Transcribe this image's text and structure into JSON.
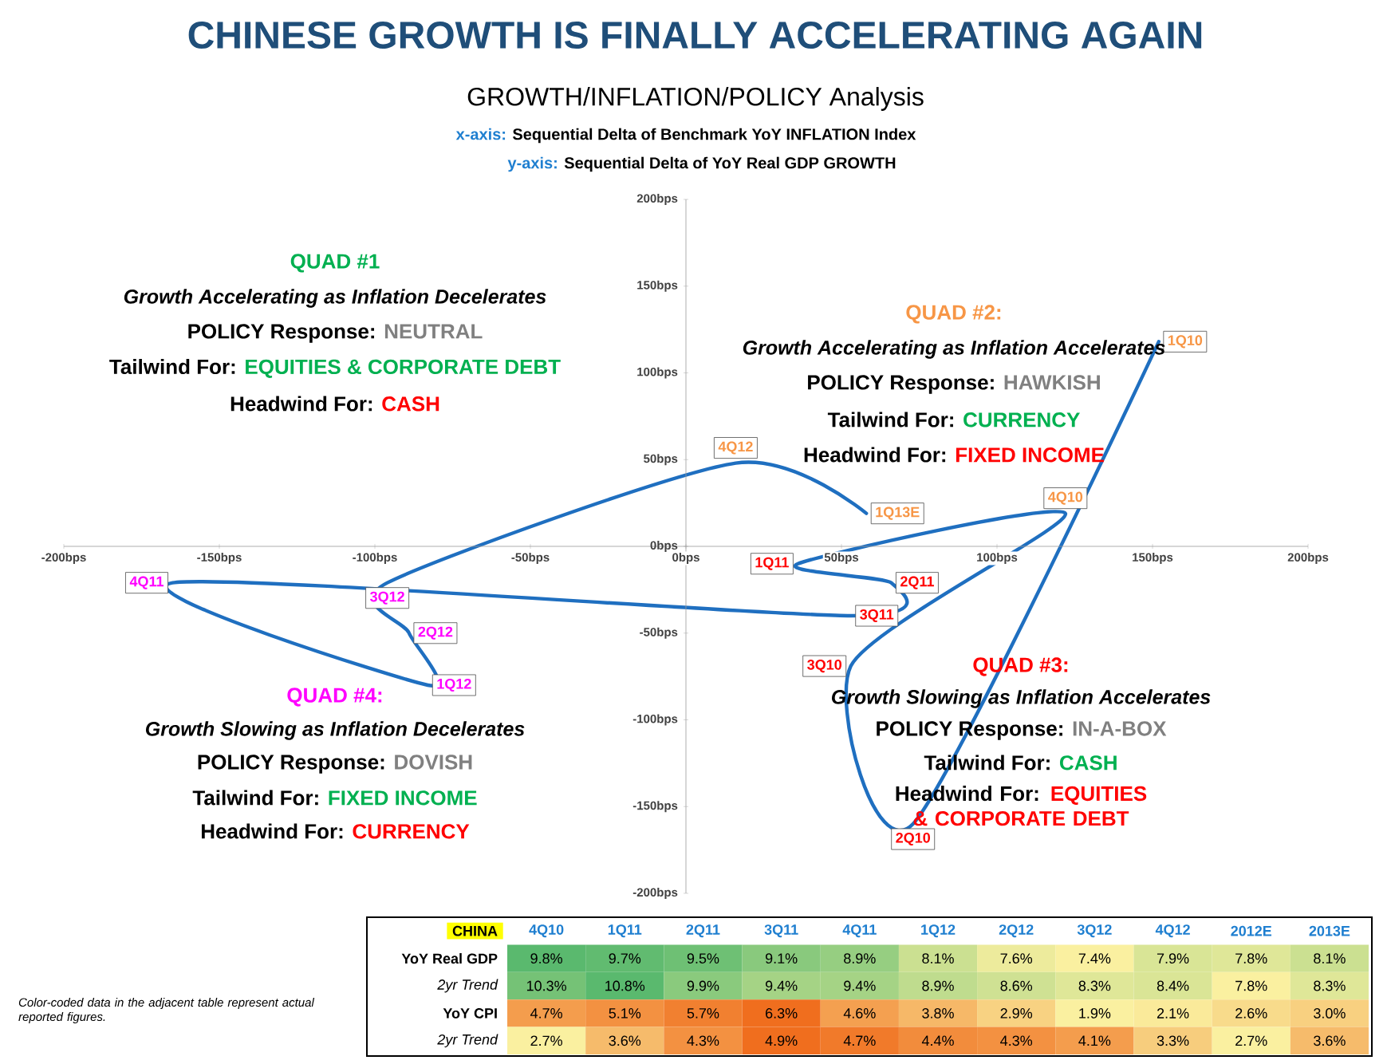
{
  "chart_data": [
    {
      "type": "line",
      "title": "CHINESE GROWTH IS FINALLY ACCELERATING AGAIN",
      "subtitle": "GROWTH/INFLATION/POLICY Analysis",
      "xlabel": "Sequential Delta of Benchmark YoY INFLATION Index",
      "ylabel": "Sequential Delta of YoY Real GDP GROWTH",
      "x": [
        152,
        73,
        53,
        122,
        36,
        66,
        53,
        -165,
        -83,
        -89,
        -96,
        16,
        58
      ],
      "values": [
        118,
        -160,
        -69,
        19,
        -10,
        -21,
        -40,
        -21,
        -80,
        -50,
        -21,
        48,
        19
      ],
      "color": "#1f6fc0",
      "xlim": [
        -200,
        200
      ],
      "ylim": [
        -200,
        200
      ],
      "xticks": [
        {
          "value": -200,
          "label": "-200bps"
        },
        {
          "value": -150,
          "label": "-150bps"
        },
        {
          "value": -100,
          "label": "-100bps"
        },
        {
          "value": -50,
          "label": "-50bps"
        },
        {
          "value": 0,
          "label": "0bps"
        },
        {
          "value": 50,
          "label": "50bps"
        },
        {
          "value": 100,
          "label": "100bps"
        },
        {
          "value": 150,
          "label": "150bps"
        },
        {
          "value": 200,
          "label": "200bps"
        }
      ],
      "yticks": [
        {
          "value": -200,
          "label": "-200bps"
        },
        {
          "value": -150,
          "label": "-150bps"
        },
        {
          "value": -100,
          "label": "-100bps"
        },
        {
          "value": -50,
          "label": "-50bps"
        },
        {
          "value": 0,
          "label": "0bps"
        },
        {
          "value": 50,
          "label": "50bps"
        },
        {
          "value": 100,
          "label": "100bps"
        },
        {
          "value": 150,
          "label": "150bps"
        },
        {
          "value": 200,
          "label": "200bps"
        }
      ],
      "annotations": [
        "x-axis:",
        "y-axis:",
        "QUAD #1",
        "Growth Accelerating as Inflation Decelerates",
        "POLICY Response:",
        "NEUTRAL",
        "Tailwind For:",
        "EQUITIES & CORPORATE DEBT",
        "Headwind For:",
        "CASH",
        "QUAD #2:",
        "Growth Accelerating as Inflation Accelerates",
        "POLICY Response:",
        "HAWKISH",
        "Tailwind For:",
        "CURRENCY",
        "Headwind For:",
        "FIXED INCOME",
        "QUAD #3:",
        "Growth Slowing as Inflation Accelerates",
        "POLICY Response:",
        "IN-A-BOX",
        "Tailwind For:",
        "CASH",
        "Headwind For:",
        "EQUITIES & CORPORATE DEBT",
        "QUAD #4:",
        "Growth Slowing as Inflation Decelerates",
        "POLICY Response:",
        "DOVISH",
        "Tailwind For:",
        "FIXED INCOME",
        "Headwind For:",
        "CURRENCY",
        "Color-coded data in the adjacent table represent actual reported figures.",
        {
          "text": "1Q10",
          "x": 152,
          "y": 118
        },
        {
          "text": "2Q10",
          "x": 73,
          "y": -160
        },
        {
          "text": "3Q10",
          "x": 53,
          "y": -69
        },
        {
          "text": "4Q10",
          "x": 122,
          "y": 19
        },
        {
          "text": "1Q11",
          "x": 36,
          "y": -10
        },
        {
          "text": "2Q11",
          "x": 66,
          "y": -21
        },
        {
          "text": "3Q11",
          "x": 53,
          "y": -40
        },
        {
          "text": "4Q11",
          "x": -165,
          "y": -21
        },
        {
          "text": "1Q12",
          "x": -83,
          "y": -80
        },
        {
          "text": "2Q12",
          "x": -89,
          "y": -50
        },
        {
          "text": "3Q12",
          "x": -96,
          "y": -21
        },
        {
          "text": "4Q12",
          "x": 16,
          "y": 48
        },
        {
          "text": "1Q13E",
          "x": 58,
          "y": 19
        }
      ]
    },
    {
      "type": "heatmap",
      "title": "CHINA",
      "categories": [
        "4Q10",
        "1Q11",
        "2Q11",
        "3Q11",
        "4Q11",
        "1Q12",
        "2Q12",
        "3Q12",
        "4Q12",
        "2012E",
        "2013E"
      ],
      "y_categories": [
        "YoY Real GDP",
        "2yr Trend",
        "YoY CPI",
        "2yr Trend"
      ],
      "cells": [
        [
          9.8,
          9.7,
          9.5,
          9.1,
          8.9,
          8.1,
          7.6,
          7.4,
          7.9,
          7.8,
          8.1
        ],
        [
          10.3,
          10.8,
          9.9,
          9.4,
          9.4,
          8.9,
          8.6,
          8.3,
          8.4,
          7.8,
          8.3
        ],
        [
          4.7,
          5.1,
          5.7,
          6.3,
          4.6,
          3.8,
          2.9,
          1.9,
          2.1,
          2.6,
          3.0
        ],
        [
          2.7,
          3.6,
          4.3,
          4.9,
          4.7,
          4.4,
          4.3,
          4.1,
          3.3,
          2.7,
          3.6
        ]
      ],
      "cell_labels": [
        [
          "9.8%",
          "9.7%",
          "9.5%",
          "9.1%",
          "8.9%",
          "8.1%",
          "7.6%",
          "7.4%",
          "7.9%",
          "7.8%",
          "8.1%"
        ],
        [
          "10.3%",
          "10.8%",
          "9.9%",
          "9.4%",
          "9.4%",
          "8.9%",
          "8.6%",
          "8.3%",
          "8.4%",
          "7.8%",
          "8.3%"
        ],
        [
          "4.7%",
          "5.1%",
          "5.7%",
          "6.3%",
          "4.6%",
          "3.8%",
          "2.9%",
          "1.9%",
          "2.1%",
          "2.6%",
          "3.0%"
        ],
        [
          "2.7%",
          "3.6%",
          "4.3%",
          "4.9%",
          "4.7%",
          "4.4%",
          "4.3%",
          "4.1%",
          "3.3%",
          "2.7%",
          "3.6%"
        ]
      ]
    }
  ]
}
